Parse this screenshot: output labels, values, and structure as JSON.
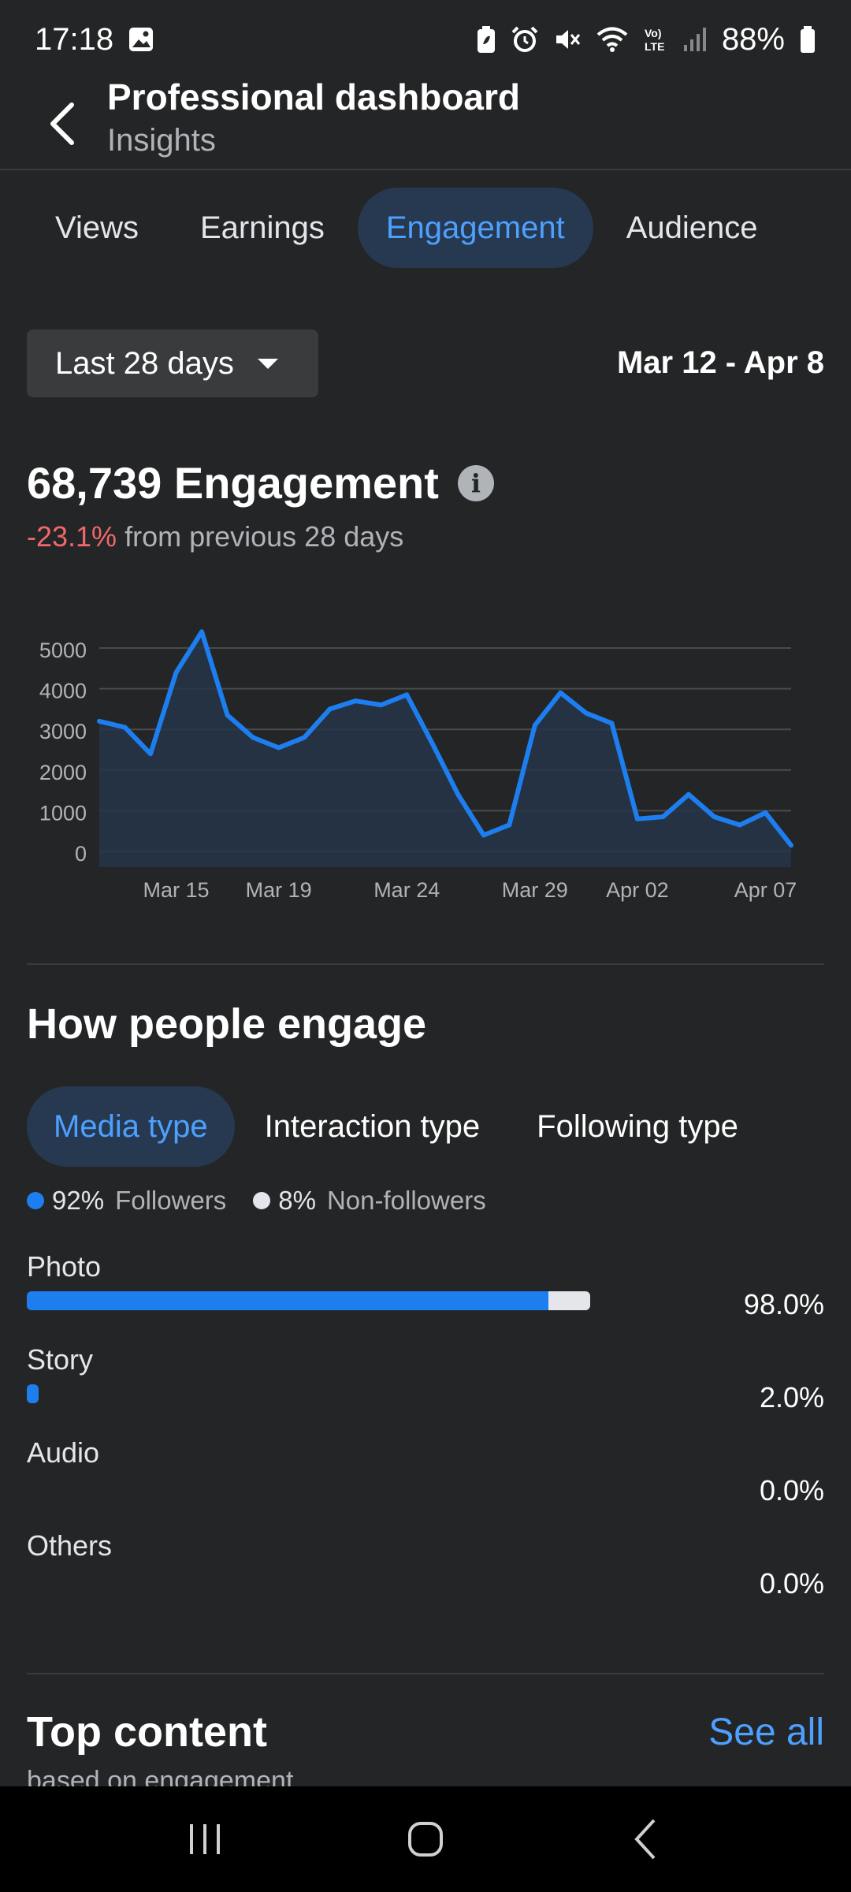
{
  "status_bar": {
    "time": "17:18",
    "battery": "88%",
    "icons": [
      "gallery-icon",
      "battery-saver-icon",
      "alarm-icon",
      "mute-icon",
      "wifi-icon",
      "volte-icon",
      "signal-icon",
      "battery-icon"
    ]
  },
  "header": {
    "title": "Professional dashboard",
    "subtitle": "Insights"
  },
  "tabs": [
    {
      "label": "Views",
      "active": false
    },
    {
      "label": "Earnings",
      "active": false
    },
    {
      "label": "Engagement",
      "active": true
    },
    {
      "label": "Audience",
      "active": false
    }
  ],
  "filter": {
    "range_label": "Last 28 days",
    "date_range": "Mar 12 - Apr 8"
  },
  "metric": {
    "value_text": "68,739 Engagement",
    "change": "-23.1%",
    "change_suffix": "from previous 28 days"
  },
  "chart_data": {
    "type": "area",
    "x": [
      "Mar 12",
      "Mar 13",
      "Mar 14",
      "Mar 15",
      "Mar 16",
      "Mar 17",
      "Mar 18",
      "Mar 19",
      "Mar 20",
      "Mar 21",
      "Mar 22",
      "Mar 23",
      "Mar 24",
      "Mar 25",
      "Mar 26",
      "Mar 27",
      "Mar 28",
      "Mar 29",
      "Mar 30",
      "Mar 31",
      "Apr 01",
      "Apr 02",
      "Apr 03",
      "Apr 04",
      "Apr 05",
      "Apr 06",
      "Apr 07",
      "Apr 08"
    ],
    "values": [
      3200,
      3050,
      2400,
      4400,
      5400,
      3350,
      2800,
      2550,
      2800,
      3500,
      3700,
      3600,
      3850,
      2650,
      1400,
      400,
      650,
      3100,
      3900,
      3400,
      3150,
      800,
      850,
      1400,
      850,
      650,
      950,
      150
    ],
    "y_ticks": [
      "0",
      "1000",
      "2000",
      "3000",
      "4000",
      "5000"
    ],
    "ylim": [
      0,
      5000
    ],
    "x_tick_labels": [
      "Mar 15",
      "Mar 19",
      "Mar 24",
      "Mar 29",
      "Apr 02",
      "Apr 07"
    ],
    "x_tick_indices": [
      3,
      7,
      12,
      17,
      21,
      26
    ],
    "grid": true,
    "line_color": "#1d7ef0",
    "fill_color": "#26354a"
  },
  "engage": {
    "title": "How people engage",
    "subtabs": [
      {
        "label": "Media type",
        "active": true
      },
      {
        "label": "Interaction type",
        "active": false
      },
      {
        "label": "Following type",
        "active": false
      }
    ],
    "legend": [
      {
        "pct": "92%",
        "label": "Followers",
        "color": "#1d7ef0"
      },
      {
        "pct": "8%",
        "label": "Non-followers",
        "color": "#e4e6eb"
      }
    ],
    "rows": [
      {
        "label": "Photo",
        "pct": "98.0%",
        "total": 0.98,
        "followers_share": 0.926
      },
      {
        "label": "Story",
        "pct": "2.0%",
        "total": 0.02,
        "followers_share": 1.0
      },
      {
        "label": "Audio",
        "pct": "0.0%",
        "total": 0.0,
        "followers_share": 0
      },
      {
        "label": "Others",
        "pct": "0.0%",
        "total": 0.0,
        "followers_share": 0
      }
    ]
  },
  "top_content": {
    "title": "Top content",
    "see_all": "See all",
    "subtitle": "based on engagement"
  },
  "colors": {
    "background": "#242526",
    "accent": "#4ea0ff",
    "negative": "#f0686b"
  }
}
